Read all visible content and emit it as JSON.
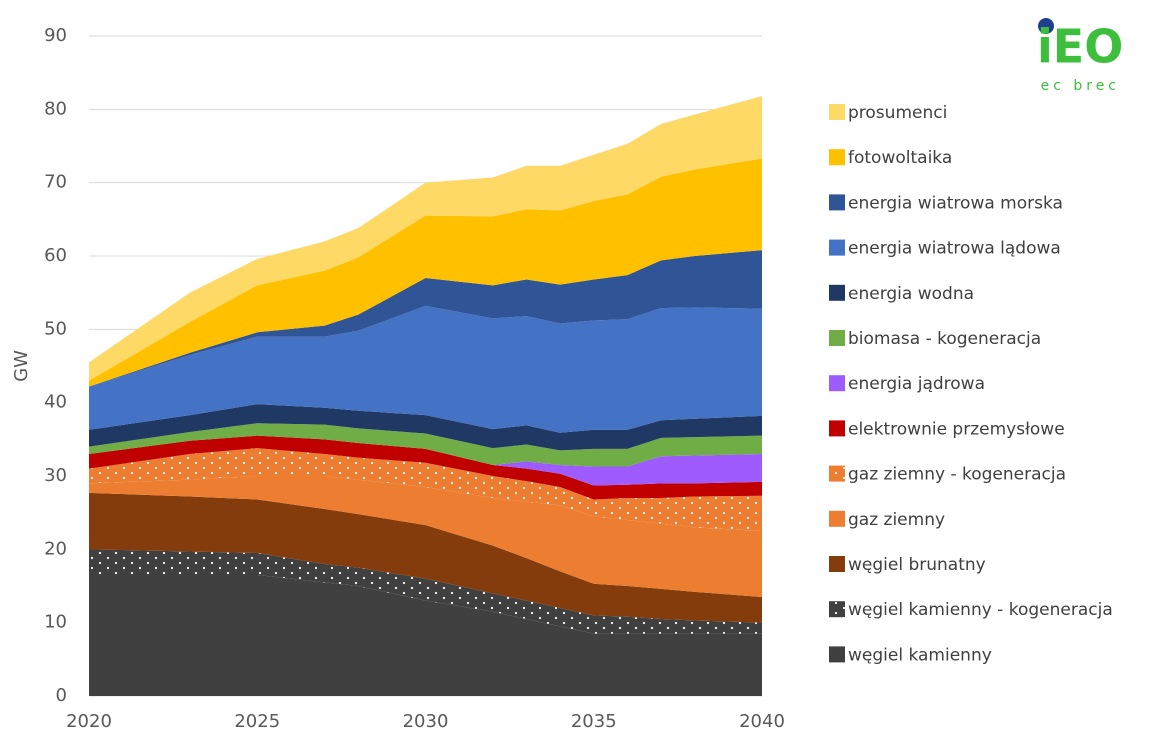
{
  "chart_data": {
    "type": "stacked_area",
    "ylabel": "GW",
    "logo": {
      "text": "iEO",
      "subtitle": "ec brec"
    },
    "x": [
      2020,
      2023,
      2025,
      2027,
      2028,
      2030,
      2032,
      2033,
      2034,
      2035,
      2036,
      2037,
      2038,
      2040
    ],
    "xlim": [
      2020,
      2040
    ],
    "xticks": [
      2020,
      2025,
      2030,
      2035,
      2040
    ],
    "ylim": [
      0,
      90
    ],
    "yticks": [
      0,
      10,
      20,
      30,
      40,
      50,
      60,
      70,
      80,
      90
    ],
    "grid": true,
    "legend": "right",
    "series": [
      {
        "name": "węgiel kamienny",
        "color": "#404040",
        "values": [
          16.5,
          16.5,
          16.5,
          15.5,
          15,
          13,
          11.5,
          10.5,
          9.5,
          8.5,
          8.5,
          8.5,
          8.5,
          8.5
        ]
      },
      {
        "name": "węgiel kamienny - kogeneracja",
        "color": "#404040",
        "pattern": "dots",
        "values": [
          3.5,
          3.2,
          3,
          2.5,
          2.5,
          3,
          2.5,
          2.5,
          2.5,
          2.5,
          2.3,
          2,
          1.8,
          1.5
        ]
      },
      {
        "name": "węgiel brunatny",
        "color": "#843c0c",
        "values": [
          7.7,
          7.5,
          7.3,
          7.5,
          7.3,
          7.3,
          6.5,
          5.8,
          5,
          4.3,
          4.2,
          4.1,
          3.9,
          3.5
        ]
      },
      {
        "name": "gaz ziemny",
        "color": "#ed7d31",
        "values": [
          1.3,
          2.3,
          3.2,
          4.5,
          4.7,
          5.2,
          6.5,
          7.7,
          9,
          9.2,
          9,
          8.9,
          8.8,
          9
        ]
      },
      {
        "name": "gaz ziemny - kogeneracja",
        "color": "#ed7d31",
        "pattern": "dots",
        "values": [
          2,
          3.5,
          3.8,
          3,
          3,
          3.3,
          3,
          2.8,
          2.5,
          2.3,
          3,
          3.5,
          4.2,
          4.8
        ]
      },
      {
        "name": "elektrownie przemysłowe",
        "color": "#c00000",
        "values": [
          2,
          1.8,
          1.7,
          2,
          2,
          1.9,
          1.5,
          1.7,
          1.8,
          1.9,
          1.8,
          2,
          1.8,
          1.9
        ]
      },
      {
        "name": "energia jądrowa",
        "color": "#9e5cff",
        "values": [
          0,
          0,
          0,
          0,
          0,
          0,
          0,
          1,
          1.2,
          2.6,
          2.5,
          3.7,
          3.8,
          3.8
        ]
      },
      {
        "name": "biomasa - kogeneracja",
        "color": "#70ad47",
        "values": [
          1,
          1.2,
          1.7,
          2,
          2,
          2.1,
          2.3,
          2.3,
          2,
          2.4,
          2.4,
          2.5,
          2.5,
          2.5
        ]
      },
      {
        "name": "energia wodna",
        "color": "#203864",
        "values": [
          2.3,
          2.3,
          2.6,
          2.3,
          2.4,
          2.5,
          2.6,
          2.6,
          2.4,
          2.6,
          2.6,
          2.4,
          2.5,
          2.7
        ]
      },
      {
        "name": "energia wiatrowa lądowa",
        "color": "#4472c4",
        "values": [
          5.9,
          8.2,
          9.2,
          9.7,
          10.9,
          14.9,
          15.1,
          14.9,
          14.9,
          14.9,
          15.1,
          15.3,
          15.2,
          14.6
        ]
      },
      {
        "name": "energia wiatrowa morska",
        "color": "#2f5597",
        "values": [
          0,
          0.3,
          0.6,
          1.5,
          2.2,
          3.8,
          4.5,
          5,
          5.3,
          5.6,
          6,
          6.5,
          7,
          8
        ]
      },
      {
        "name": "fotowoltaika",
        "color": "#ffc000",
        "values": [
          0.8,
          4.2,
          6.4,
          7.5,
          7.8,
          8.5,
          9.4,
          9.6,
          10.1,
          10.7,
          11,
          11.4,
          11.8,
          12.5
        ]
      },
      {
        "name": "prosumenci",
        "color": "#ffd966",
        "values": [
          2.5,
          4,
          3.6,
          4,
          4,
          4.5,
          5.3,
          5.9,
          6.1,
          6.3,
          6.9,
          7.2,
          7.5,
          8.5
        ]
      }
    ]
  }
}
